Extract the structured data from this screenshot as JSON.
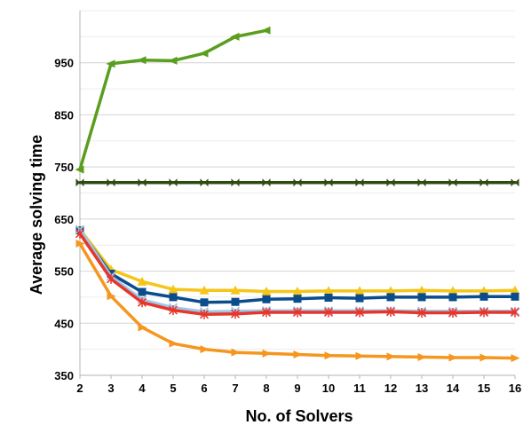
{
  "chart_data": {
    "type": "line",
    "title": "",
    "xlabel": "No. of Solvers",
    "ylabel": "Average solving time",
    "x": [
      2,
      3,
      4,
      5,
      6,
      7,
      8,
      9,
      10,
      11,
      12,
      13,
      14,
      15,
      16
    ],
    "xlim": [
      2,
      16
    ],
    "ylim": [
      350,
      1050
    ],
    "yticks": [
      350,
      450,
      550,
      650,
      750,
      850,
      950
    ],
    "grid": "horizontal",
    "legend": "none",
    "series": [
      {
        "color": "#5a9e1e",
        "marker": "triangle-left",
        "x": [
          2,
          3,
          4,
          5,
          6,
          7,
          8
        ],
        "values": [
          745,
          948,
          955,
          954,
          968,
          1000,
          1012
        ]
      },
      {
        "color": "#2f4a0f",
        "marker": "bowtie",
        "x": [
          2,
          3,
          4,
          5,
          6,
          7,
          8,
          9,
          10,
          11,
          12,
          13,
          14,
          15,
          16
        ],
        "values": [
          720,
          720,
          720,
          720,
          720,
          720,
          720,
          720,
          720,
          720,
          720,
          720,
          720,
          720,
          720
        ]
      },
      {
        "color": "#f5c518",
        "marker": "triangle-up",
        "x": [
          2,
          3,
          4,
          5,
          6,
          7,
          8,
          9,
          10,
          11,
          12,
          13,
          14,
          15,
          16
        ],
        "values": [
          630,
          553,
          530,
          515,
          513,
          513,
          511,
          511,
          512,
          512,
          512,
          513,
          512,
          512,
          513
        ]
      },
      {
        "color": "#0a4c8c",
        "marker": "square",
        "x": [
          2,
          3,
          4,
          5,
          6,
          7,
          8,
          9,
          10,
          11,
          12,
          13,
          14,
          15,
          16
        ],
        "values": [
          628,
          545,
          510,
          500,
          490,
          491,
          496,
          497,
          499,
          498,
          500,
          500,
          500,
          501,
          501
        ]
      },
      {
        "color": "#9ec8ea",
        "marker": "x",
        "x": [
          2,
          3,
          4,
          5,
          6,
          7,
          8,
          9,
          10,
          11,
          12,
          13,
          14,
          15,
          16
        ],
        "values": [
          630,
          540,
          495,
          480,
          472,
          473,
          474,
          474,
          474,
          474,
          474,
          473,
          473,
          473,
          473
        ]
      },
      {
        "color": "#e8352a",
        "marker": "asterisk",
        "x": [
          2,
          3,
          4,
          5,
          6,
          7,
          8,
          9,
          10,
          11,
          12,
          13,
          14,
          15,
          16
        ],
        "values": [
          622,
          535,
          490,
          475,
          467,
          468,
          471,
          471,
          471,
          471,
          472,
          470,
          470,
          471,
          471
        ]
      },
      {
        "color": "#f5961e",
        "marker": "triangle-right",
        "x": [
          2,
          3,
          4,
          5,
          6,
          7,
          8,
          9,
          10,
          11,
          12,
          13,
          14,
          15,
          16
        ],
        "values": [
          603,
          502,
          442,
          411,
          400,
          394,
          392,
          390,
          388,
          387,
          386,
          385,
          384,
          384,
          383
        ]
      }
    ]
  }
}
